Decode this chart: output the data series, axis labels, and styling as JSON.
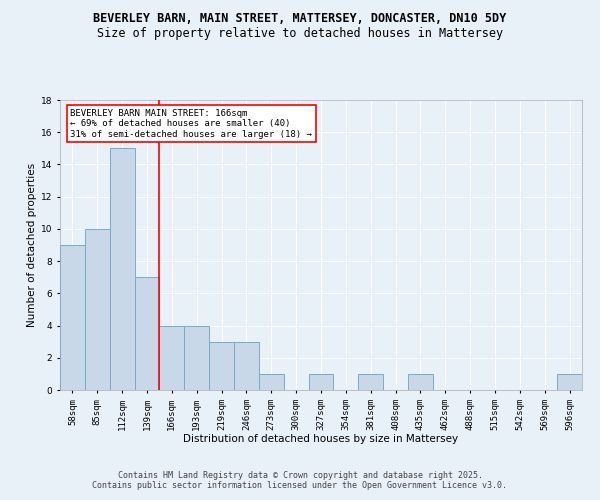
{
  "title_line1": "BEVERLEY BARN, MAIN STREET, MATTERSEY, DONCASTER, DN10 5DY",
  "title_line2": "Size of property relative to detached houses in Mattersey",
  "xlabel": "Distribution of detached houses by size in Mattersey",
  "ylabel": "Number of detached properties",
  "categories": [
    "58sqm",
    "85sqm",
    "112sqm",
    "139sqm",
    "166sqm",
    "193sqm",
    "219sqm",
    "246sqm",
    "273sqm",
    "300sqm",
    "327sqm",
    "354sqm",
    "381sqm",
    "408sqm",
    "435sqm",
    "462sqm",
    "488sqm",
    "515sqm",
    "542sqm",
    "569sqm",
    "596sqm"
  ],
  "values": [
    9,
    10,
    15,
    7,
    4,
    4,
    3,
    3,
    1,
    0,
    1,
    0,
    1,
    0,
    1,
    0,
    0,
    0,
    0,
    0,
    1
  ],
  "bar_color": "#c8d8e8",
  "bar_edge_color": "#7aaac8",
  "highlight_line_color": "red",
  "annotation_text": "BEVERLEY BARN MAIN STREET: 166sqm\n← 69% of detached houses are smaller (40)\n31% of semi-detached houses are larger (18) →",
  "annotation_box_color": "white",
  "annotation_box_edge_color": "red",
  "ylim": [
    0,
    18
  ],
  "yticks": [
    0,
    2,
    4,
    6,
    8,
    10,
    12,
    14,
    16,
    18
  ],
  "footer_text": "Contains HM Land Registry data © Crown copyright and database right 2025.\nContains public sector information licensed under the Open Government Licence v3.0.",
  "bg_color": "#e8f0f8",
  "plot_bg_color": "#e8f0f8",
  "grid_color": "#ffffff",
  "title_fontsize": 8.5,
  "subtitle_fontsize": 8.5,
  "axis_label_fontsize": 7.5,
  "tick_fontsize": 6.5,
  "annotation_fontsize": 6.5,
  "footer_fontsize": 6.0
}
